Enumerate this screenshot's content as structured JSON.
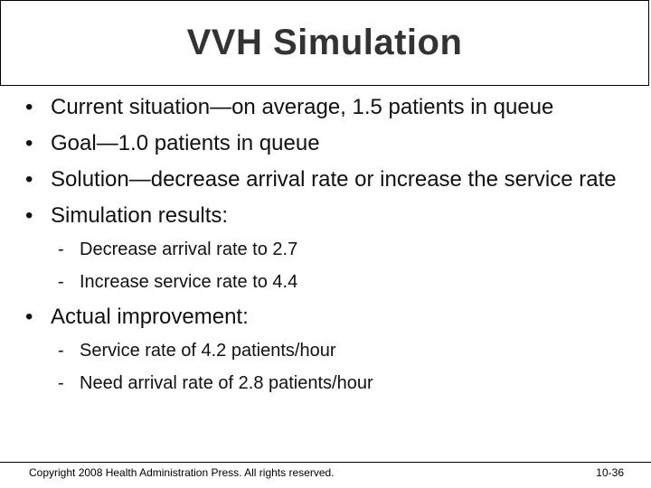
{
  "slide": {
    "title": "VVH Simulation",
    "bullets": [
      "Current situation—on average, 1.5 patients in queue",
      "Goal—1.0 patients in queue",
      "Solution—decrease arrival rate or increase the service rate",
      "Simulation results:",
      "Actual improvement:"
    ],
    "sub_results": [
      "Decrease arrival rate to 2.7",
      "Increase service rate to 4.4"
    ],
    "sub_improvement": [
      "Service rate of 4.2 patients/hour",
      "Need arrival rate of 2.8 patients/hour"
    ],
    "bullet_symbol": "•",
    "dash_symbol": "-"
  },
  "footer": {
    "copyright": "Copyright 2008 Health Administration Press. All rights reserved.",
    "page": "10-36"
  }
}
